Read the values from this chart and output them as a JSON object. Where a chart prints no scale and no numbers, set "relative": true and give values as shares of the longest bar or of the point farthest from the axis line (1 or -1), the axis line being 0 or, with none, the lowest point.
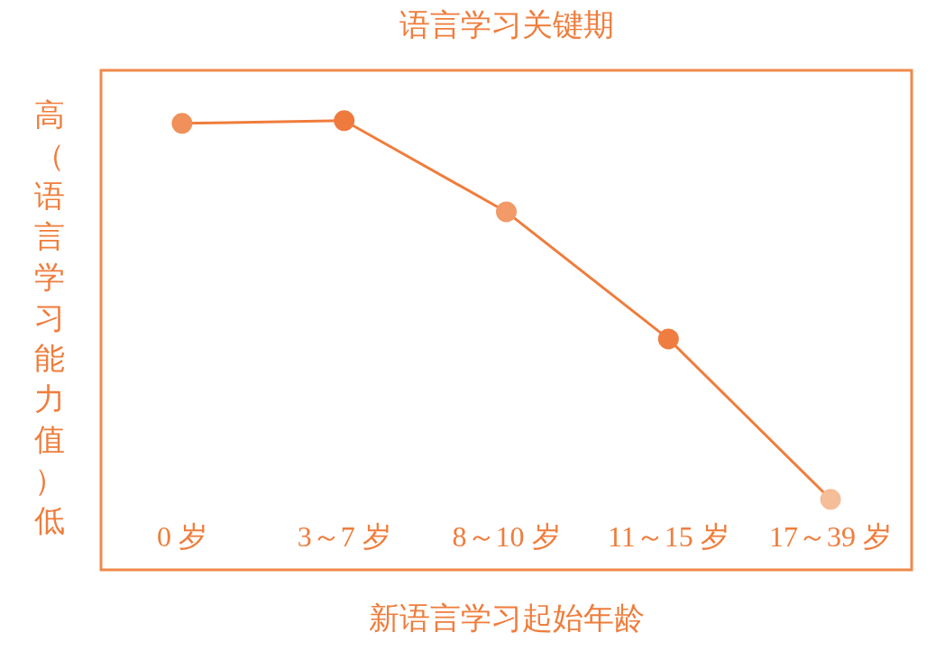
{
  "chart_data": {
    "type": "line",
    "title": "语言学习关键期",
    "xlabel": "新语言学习起始年龄",
    "ylabel": "高（语言学习能力值）低",
    "relative": true,
    "marker": "circle",
    "line_style": "solid",
    "legend": false,
    "categories": [
      "0 岁",
      "3～7 岁",
      "8～10 岁",
      "11～15 岁",
      "17～39 岁"
    ],
    "series": [
      {
        "color": "#ef7d3c",
        "colors": [
          "#f0905a",
          "#ef7a3e",
          "#f29a68",
          "#ef7d40",
          "#f5bd98"
        ],
        "values": [
          0.994,
          1,
          0.797,
          0.514,
          0.157
        ]
      }
    ]
  }
}
